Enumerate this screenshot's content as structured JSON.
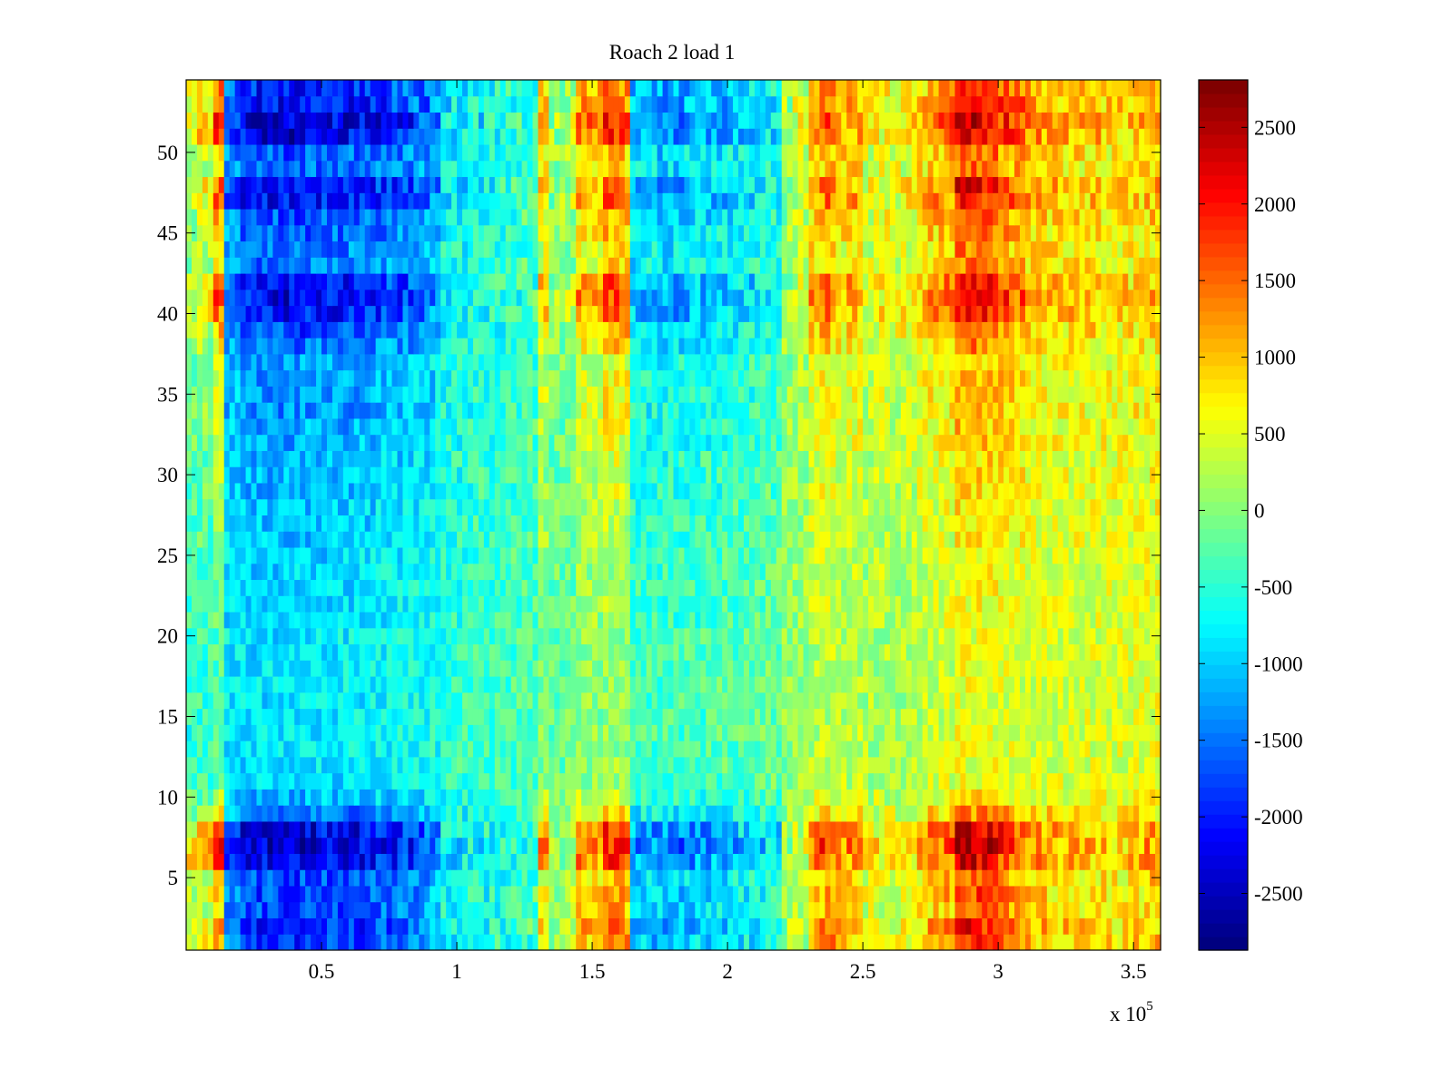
{
  "chart_data": {
    "type": "heatmap",
    "title": "Roach 2 load 1",
    "xlabel": "",
    "ylabel": "",
    "x_multiplier_label": "x 10",
    "x_multiplier_exponent": "5",
    "xlim": [
      0,
      360000
    ],
    "ylim": [
      0.5,
      54.5
    ],
    "rows": 54,
    "x_ticks": [
      {
        "value": 50000,
        "label": "0.5"
      },
      {
        "value": 100000,
        "label": "1"
      },
      {
        "value": 150000,
        "label": "1.5"
      },
      {
        "value": 200000,
        "label": "2"
      },
      {
        "value": 250000,
        "label": "2.5"
      },
      {
        "value": 300000,
        "label": "3"
      },
      {
        "value": 350000,
        "label": "3.5"
      }
    ],
    "y_ticks": [
      {
        "value": 5,
        "label": "5"
      },
      {
        "value": 10,
        "label": "10"
      },
      {
        "value": 15,
        "label": "15"
      },
      {
        "value": 20,
        "label": "20"
      },
      {
        "value": 25,
        "label": "25"
      },
      {
        "value": 30,
        "label": "30"
      },
      {
        "value": 35,
        "label": "35"
      },
      {
        "value": 40,
        "label": "40"
      },
      {
        "value": 45,
        "label": "45"
      },
      {
        "value": 50,
        "label": "50"
      }
    ],
    "colorbar": {
      "colormap": "jet",
      "clim": [
        -2870,
        2810
      ],
      "ticks": [
        {
          "value": 2500,
          "label": "2500"
        },
        {
          "value": 2000,
          "label": "2000"
        },
        {
          "value": 1500,
          "label": "1500"
        },
        {
          "value": 1000,
          "label": "1000"
        },
        {
          "value": 500,
          "label": "500"
        },
        {
          "value": 0,
          "label": "0"
        },
        {
          "value": -500,
          "label": "-500"
        },
        {
          "value": -1000,
          "label": "-1000"
        },
        {
          "value": -1500,
          "label": "-1500"
        },
        {
          "value": -2000,
          "label": "-2000"
        },
        {
          "value": -2500,
          "label": "-2500"
        }
      ]
    },
    "column_bin_width": 5000,
    "column_profile_strong_rows": [
      800,
      1000,
      2000,
      -1800,
      -2300,
      -2400,
      -2400,
      -2500,
      -2500,
      -2400,
      -2400,
      -2400,
      -2300,
      -2300,
      -2200,
      -2100,
      -2000,
      -1800,
      -1600,
      -900,
      -900,
      -800,
      -700,
      -600,
      -500,
      -400,
      1200,
      200,
      400,
      1600,
      1400,
      2000,
      1800,
      -1300,
      -1400,
      -1500,
      -1500,
      -1400,
      -1400,
      -1300,
      -1200,
      -1100,
      -1000,
      -900,
      200,
      500,
      1500,
      1700,
      1300,
      1400,
      700,
      800,
      700,
      800,
      1200,
      1500,
      1600,
      2600,
      2500,
      2300,
      2000,
      1800,
      1400,
      1300,
      1200,
      1200,
      1100,
      1100,
      1000,
      1000,
      1100,
      1200
    ],
    "row_gain": [
      0.7,
      0.75,
      0.6,
      0.65,
      0.6,
      0.9,
      1.0,
      0.9,
      0.5,
      0.3,
      0.2,
      0.15,
      0.15,
      0.15,
      0.15,
      0.15,
      0.15,
      0.15,
      0.15,
      0.15,
      0.2,
      0.2,
      0.2,
      0.2,
      0.2,
      0.25,
      0.25,
      0.25,
      0.3,
      0.3,
      0.3,
      0.35,
      0.35,
      0.4,
      0.4,
      0.4,
      0.35,
      0.5,
      0.6,
      0.8,
      0.85,
      0.8,
      0.5,
      0.5,
      0.55,
      0.6,
      0.8,
      0.8,
      0.55,
      0.6,
      0.9,
      0.95,
      0.8,
      0.75
    ],
    "background_trend": {
      "left_value": -700,
      "right_value": 400
    },
    "noise_amplitude": 550
  }
}
